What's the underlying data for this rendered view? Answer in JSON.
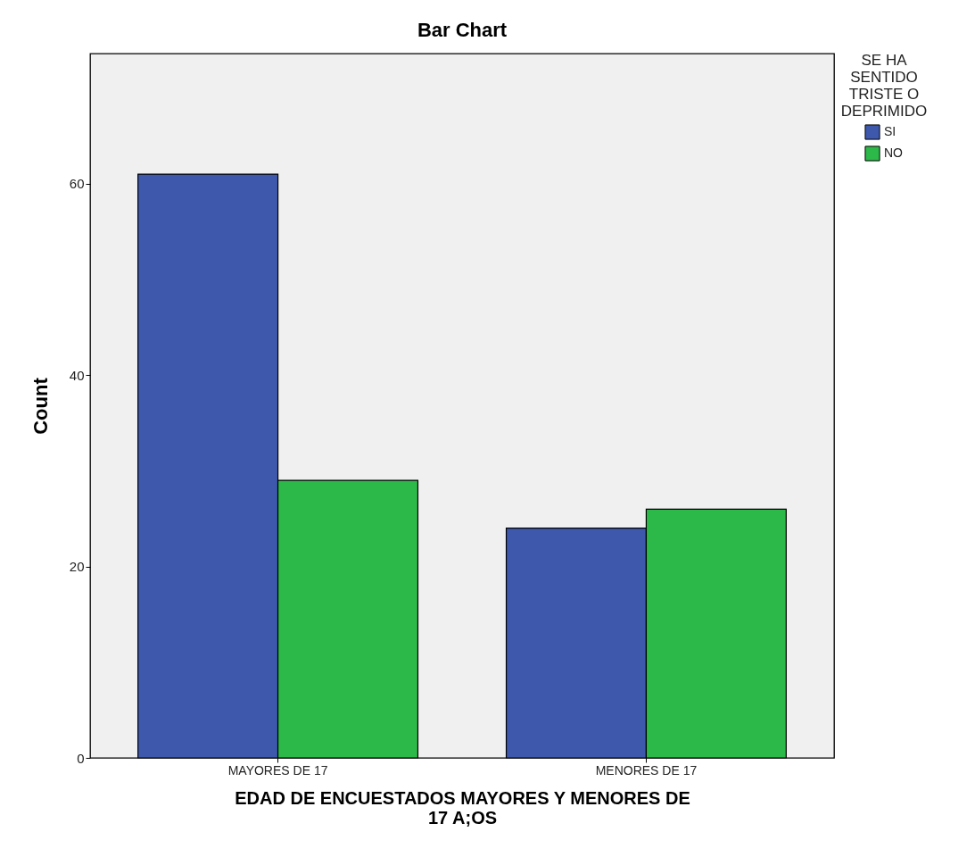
{
  "chart_data": {
    "type": "bar",
    "title": "Bar Chart",
    "xlabel": "EDAD DE ENCUESTADOS MAYORES Y MENORES DE 17 A;OS",
    "ylabel": "Count",
    "legend_title": "SE HA SENTIDO TRISTE O DEPRIMIDO",
    "categories": [
      "MAYORES DE 17",
      "MENORES DE 17"
    ],
    "series": [
      {
        "name": "SI",
        "color": "#3e58ac",
        "values": [
          61,
          24
        ]
      },
      {
        "name": "NO",
        "color": "#2db84a",
        "values": [
          29,
          26
        ]
      }
    ],
    "ylim": [
      0,
      73.6
    ],
    "yticks": [
      0,
      20,
      40,
      60
    ],
    "grid": false,
    "legend": "top right"
  }
}
